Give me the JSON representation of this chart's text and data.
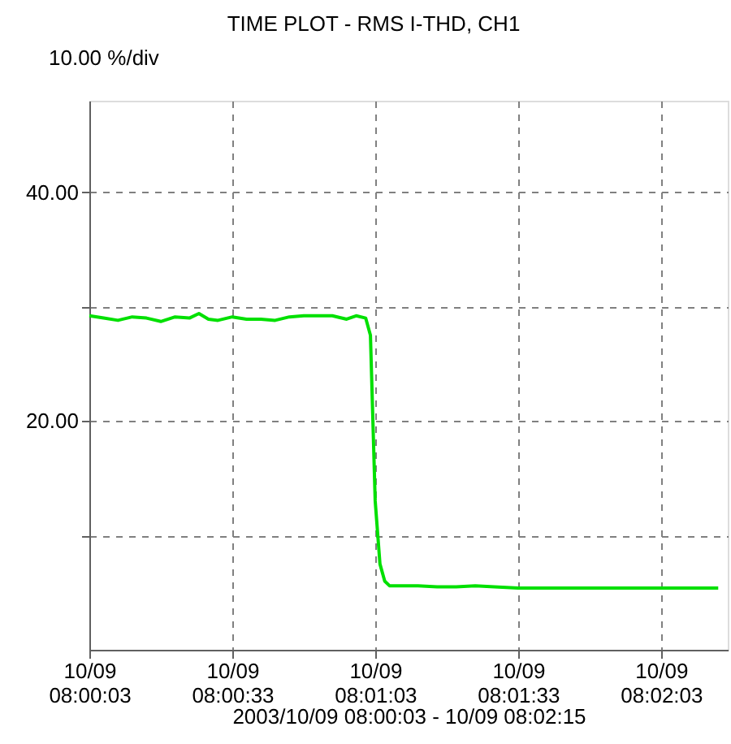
{
  "chart_data": {
    "type": "line",
    "title": "TIME PLOT - RMS  I-THD, CH1",
    "subtitle": "10.00 %/div",
    "xlabel": "2003/10/09 08:00:03 - 10/09 08:02:15",
    "x": [
      "2003-10-09T08:00:03",
      "2003-10-09T08:00:06",
      "2003-10-09T08:00:09",
      "2003-10-09T08:00:12",
      "2003-10-09T08:00:15",
      "2003-10-09T08:00:18",
      "2003-10-09T08:00:21",
      "2003-10-09T08:00:24",
      "2003-10-09T08:00:26",
      "2003-10-09T08:00:28",
      "2003-10-09T08:00:30",
      "2003-10-09T08:00:33",
      "2003-10-09T08:00:36",
      "2003-10-09T08:00:39",
      "2003-10-09T08:00:42",
      "2003-10-09T08:00:45",
      "2003-10-09T08:00:48",
      "2003-10-09T08:00:51",
      "2003-10-09T08:00:54",
      "2003-10-09T08:00:57",
      "2003-10-09T08:00:59",
      "2003-10-09T08:01:01",
      "2003-10-09T08:01:02",
      "2003-10-09T08:01:03",
      "2003-10-09T08:01:04",
      "2003-10-09T08:01:05",
      "2003-10-09T08:01:06",
      "2003-10-09T08:01:08",
      "2003-10-09T08:01:12",
      "2003-10-09T08:01:16",
      "2003-10-09T08:01:20",
      "2003-10-09T08:01:24",
      "2003-10-09T08:01:28",
      "2003-10-09T08:01:33",
      "2003-10-09T08:01:40",
      "2003-10-09T08:01:50",
      "2003-10-09T08:02:00",
      "2003-10-09T08:02:10",
      "2003-10-09T08:02:15"
    ],
    "series": [
      {
        "color": "#00e000",
        "values": [
          29.2,
          29.0,
          28.8,
          29.1,
          29.0,
          28.7,
          29.1,
          29.0,
          29.4,
          28.9,
          28.8,
          29.1,
          28.9,
          28.9,
          28.8,
          29.1,
          29.2,
          29.2,
          29.2,
          28.9,
          29.2,
          29.0,
          27.5,
          13.0,
          7.5,
          6.0,
          5.6,
          5.6,
          5.6,
          5.5,
          5.5,
          5.6,
          5.5,
          5.4,
          5.4,
          5.4,
          5.4,
          5.4,
          5.4
        ]
      }
    ],
    "xlim": [
      "2003-10-09T08:00:03",
      "2003-10-09T08:02:17"
    ],
    "xticks": [
      {
        "value": "2003-10-09T08:00:03",
        "label": "10/09\n08:00:03"
      },
      {
        "value": "2003-10-09T08:00:33",
        "label": "10/09\n08:00:33"
      },
      {
        "value": "2003-10-09T08:01:03",
        "label": "10/09\n08:01:03"
      },
      {
        "value": "2003-10-09T08:01:33",
        "label": "10/09\n08:01:33"
      },
      {
        "value": "2003-10-09T08:02:03",
        "label": "10/09\n08:02:03"
      }
    ],
    "ylim": [
      0,
      48
    ],
    "yticks": [
      {
        "value": 10,
        "label": null
      },
      {
        "value": 20,
        "label": "20.00"
      },
      {
        "value": 30,
        "label": null
      },
      {
        "value": 40,
        "label": "40.00"
      }
    ],
    "grid": true,
    "marker": "none",
    "line_style": "solid"
  }
}
